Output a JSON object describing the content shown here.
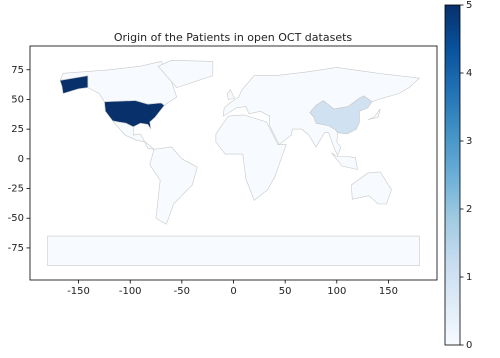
{
  "chart_data": {
    "type": "choropleth",
    "title": "Origin of the Patients in open OCT datasets",
    "values": [
      5,
      1,
      0
    ],
    "xlim": [
      -197,
      197
    ],
    "xticks": [
      -150,
      -100,
      -50,
      0,
      50,
      100,
      150
    ],
    "ylim": [
      -102,
      95
    ],
    "yticks": [
      -75,
      -50,
      -25,
      0,
      25,
      50,
      75
    ],
    "colorbar_lim": [
      0,
      5
    ],
    "colorbar_ticks": [
      0,
      1,
      2,
      3,
      4,
      5
    ],
    "colormap": [
      "#f7fbff",
      "#deebf7",
      "#c6dbef",
      "#9ecae1",
      "#6baed6",
      "#4292c6",
      "#2171b5",
      "#08519c",
      "#08306b"
    ]
  }
}
